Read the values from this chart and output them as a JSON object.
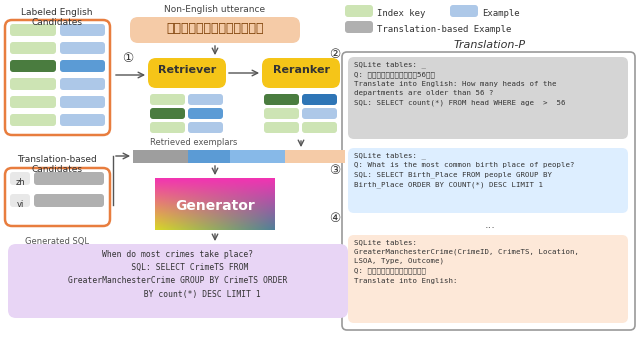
{
  "bg_color": "#ffffff",
  "left": {
    "orange": "#e87d3e",
    "green_light": "#cde4b4",
    "green_dark": "#4a7c3f",
    "blue_light": "#adc8e8",
    "blue_mid": "#5b9bd5",
    "blue_dark": "#2e75b6",
    "gray_label": "#b0b0b0",
    "gray_lang": "#c0c0c0",
    "lang_bg": "#e8e8e8"
  },
  "center": {
    "utterance_bg": "#f5cba7",
    "retriever_color": "#f5c518",
    "reranker_color": "#f5c518",
    "gen_gradient_colors": [
      "#e040a0",
      "#f5a623",
      "#7ed321",
      "#4a90e2"
    ],
    "sql_bg": "#e8d5f5",
    "bar_gray": "#9e9e9e",
    "bar_blue": "#5b9bd5",
    "bar_lightblue": "#87b9e8",
    "bar_peach": "#f5cba7"
  },
  "right": {
    "box1_bg": "#d5d5d5",
    "box2_bg": "#ddeeff",
    "box4_bg": "#fde8d8",
    "border": "#999999",
    "legend_green": "#cde4b4",
    "legend_blue": "#adc8e8",
    "legend_gray": "#b0b0b0"
  },
  "texts": {
    "labeled_title": "Labeled English\nCandidates",
    "trans_title": "Translation-based\nCandidates",
    "utterance_label": "Non-English utterance",
    "utterance_zh": "大多数犯罪发生在什么时间？",
    "retriever": "Retriever",
    "reranker": "Reranker",
    "exemplars_label": "Retrieved exemplars",
    "generator": "Generator",
    "sql_label": "Generated SQL",
    "sql_text": "When do most crimes take place?\n     SQL: SELECT CrimeTS FROM\nGreaterManchesterCrime GROUP BY CrimeTS ORDER\n          BY count(*) DESC LIMIT 1",
    "c1": "①",
    "c2": "②",
    "c3": "③",
    "c4": "④",
    "trans_p_title": "Translation-P",
    "legend_key": "Index key",
    "legend_ex": "Example",
    "legend_trans": "Translation-based Example",
    "box1": "SQLite tables: _\nQ: 部门中有多少人年龄大于56岁？\nTranslate into English: How many heads of the\ndepartments are older than 56 ?\nSQL: SELECT count(*) FROM head WHERE age  >  56",
    "box2": "SQLite tables: _\nQ: What is the most common birth place of people?\nSQL: SELECT Birth_Place FROM people GROUP BY\nBirth_Place ORDER BY COUNT(*) DESC LIMIT 1",
    "box3": "...",
    "box4": "SQLite tables:\nGreaterManchesterCrime(CrimeID, CrimeTS, Location,\nLSOA, Type, Outcome)\nQ: 大多数犯罪发生在什么时间？\nTranslate into English:",
    "zh": "zh",
    "vi": "vi"
  }
}
